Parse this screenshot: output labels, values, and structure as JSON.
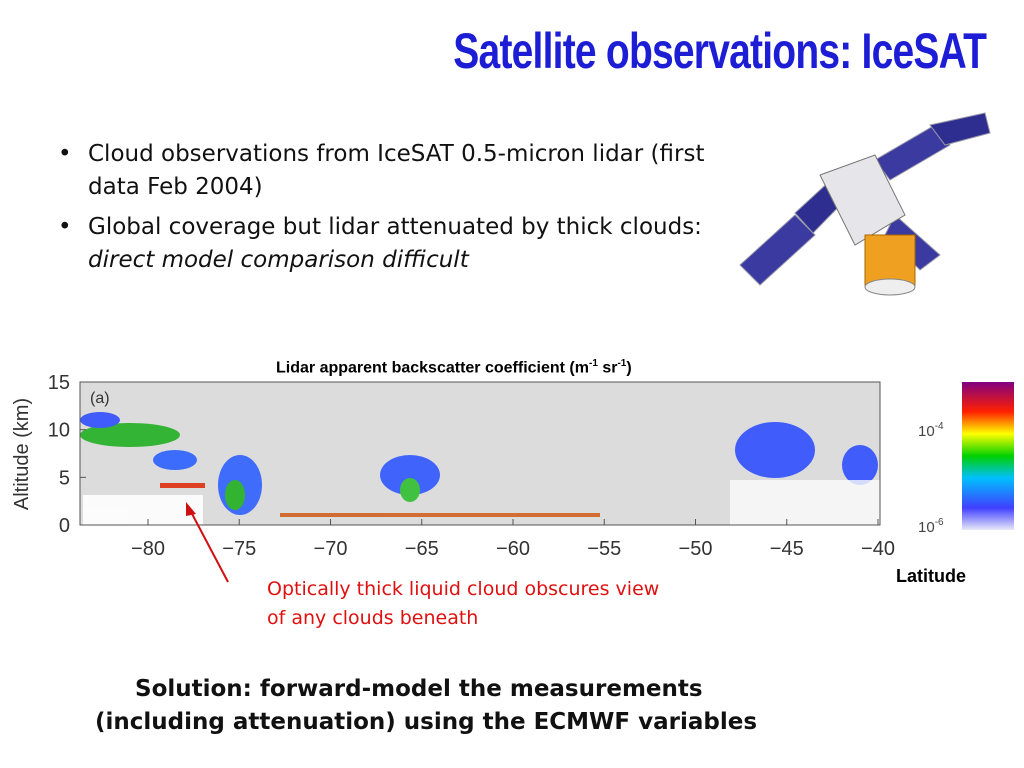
{
  "title": "Satellite observations: IceSAT",
  "bullets": [
    {
      "text": "Cloud observations from IceSAT 0.5-micron lidar (first data Feb 2004)"
    },
    {
      "text": "Global coverage but lidar attenuated by thick clouds: ",
      "italic": "direct model comparison difficult"
    }
  ],
  "figure": {
    "title": {
      "main": "Lidar apparent backscatter coefficient (m",
      "sup1": "-1",
      "mid": " sr",
      "sup2": "-1",
      "end": ")"
    },
    "panel_label": "(a)",
    "y_label": "Altitude (km)",
    "y_ticks": [
      "15",
      "10",
      "5",
      "0"
    ],
    "x_ticks": [
      "−80",
      "−75",
      "−70",
      "−65",
      "−60",
      "−55",
      "−50",
      "−45",
      "−40"
    ],
    "x_label": "Latitude",
    "colorbar": [
      {
        "base": "10",
        "exp": "-4"
      },
      {
        "base": "10",
        "exp": "-6"
      }
    ]
  },
  "annotation": [
    "Optically thick liquid cloud obscures view",
    "of any clouds beneath"
  ],
  "solution": [
    "Solution: forward-model the measurements",
    "(including attenuation) using the ECMWF variables"
  ]
}
